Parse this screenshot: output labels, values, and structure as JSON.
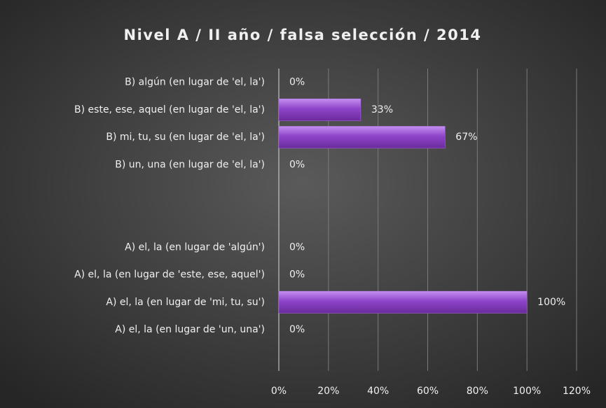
{
  "chart_data": {
    "type": "bar",
    "orientation": "horizontal",
    "title": "Nivel A / II año / falsa selección / 2014",
    "categories": [
      "B) algún (en lugar de 'el, la')",
      "B) este, ese, aquel (en lugar de 'el, la')",
      "B) mi, tu, su (en lugar de 'el, la')",
      "B) un, una (en lugar de 'el, la')",
      null,
      null,
      "A) el, la (en lugar de 'algún')",
      "A) el, la (en lugar de 'este, ese, aquel')",
      "A) el, la (en lugar de 'mi, tu, su')",
      "A) el, la (en lugar de 'un, una')",
      null
    ],
    "values": [
      0,
      33,
      67,
      0,
      null,
      null,
      0,
      0,
      100,
      0,
      null
    ],
    "value_labels": [
      "0%",
      "33%",
      "67%",
      "0%",
      null,
      null,
      "0%",
      "0%",
      "100%",
      "0%",
      null
    ],
    "color": "#8e44c8",
    "xlim": [
      0,
      120
    ],
    "xticks": [
      {
        "value": 0,
        "label": "0%"
      },
      {
        "value": 20,
        "label": "20%"
      },
      {
        "value": 40,
        "label": "40%"
      },
      {
        "value": 60,
        "label": "60%"
      },
      {
        "value": 80,
        "label": "80%"
      },
      {
        "value": 100,
        "label": "100%"
      },
      {
        "value": 120,
        "label": "120%"
      }
    ],
    "grid": true
  }
}
